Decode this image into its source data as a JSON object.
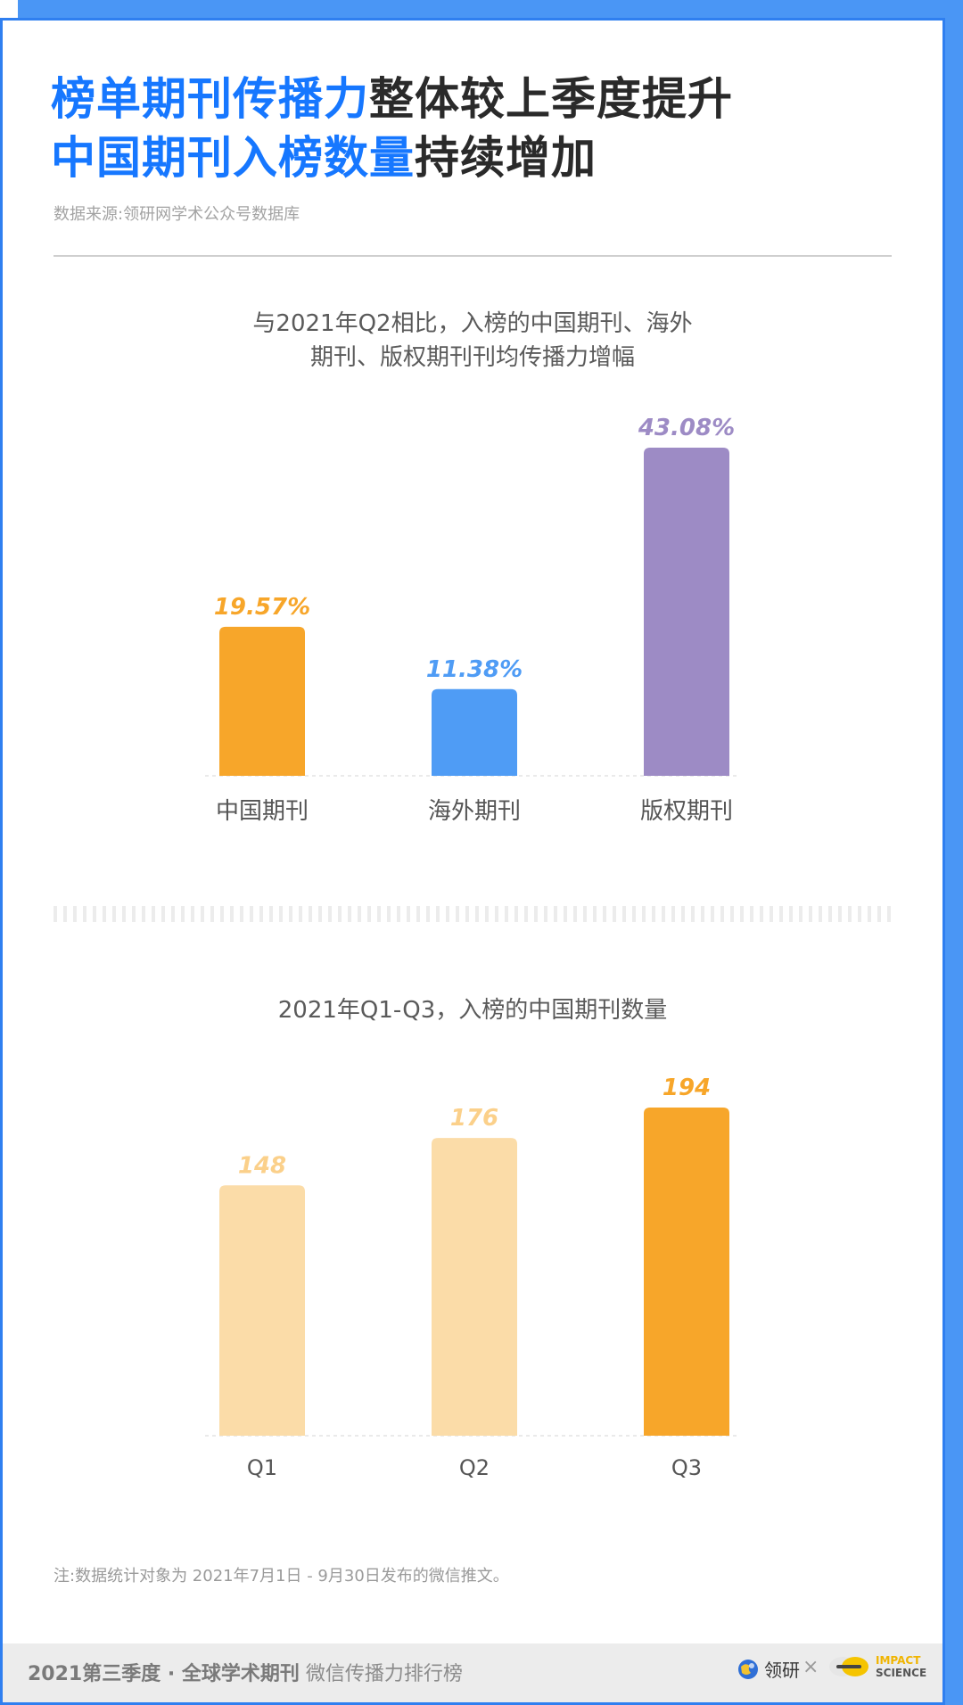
{
  "headline": {
    "line1_highlight": "榜单期刊传播力",
    "line1_rest": "整体较上季度提升",
    "line2_highlight": "中国期刊入榜数量",
    "line2_rest": "持续增加"
  },
  "source": "数据来源:领研网学术公众号数据库",
  "chart_data": [
    {
      "type": "bar",
      "title": "与2021年Q2相比，入榜的中国期刊、海外\n期刊、版权期刊刊均传播力增幅",
      "categories": [
        "中国期刊",
        "海外期刊",
        "版权期刊"
      ],
      "values": [
        19.57,
        11.38,
        43.08
      ],
      "labels": [
        "19.57%",
        "11.38%",
        "43.08%"
      ],
      "colors": [
        "#f7a62a",
        "#4f9cf5",
        "#9d8bc5"
      ],
      "label_colors": [
        "#f7a62a",
        "#4f9cf5",
        "#9d8bc5"
      ],
      "ylim": [
        0,
        43.08
      ],
      "grid": false
    },
    {
      "type": "bar",
      "title": "2021年Q1-Q3，入榜的中国期刊数量",
      "categories": [
        "Q1",
        "Q2",
        "Q3"
      ],
      "values": [
        148,
        176,
        194
      ],
      "labels": [
        "148",
        "176",
        "194"
      ],
      "colors": [
        "#fbdca8",
        "#fbdca8",
        "#f7a62a"
      ],
      "label_colors": [
        "#fbd08a",
        "#fbd08a",
        "#f7a62a"
      ],
      "ylim": [
        0,
        194
      ],
      "grid": false
    }
  ],
  "footnote": "注:数据统计对象为 2021年7月1日 - 9月30日发布的微信推文。",
  "footer": {
    "title_bold": "2021第三季度 · 全球学术期刊",
    "title_light": " 微信传播力排行榜",
    "brand1": "领研",
    "times": "×",
    "brand2_line1": "IMPACT",
    "brand2_line2": "SCIENCE"
  }
}
